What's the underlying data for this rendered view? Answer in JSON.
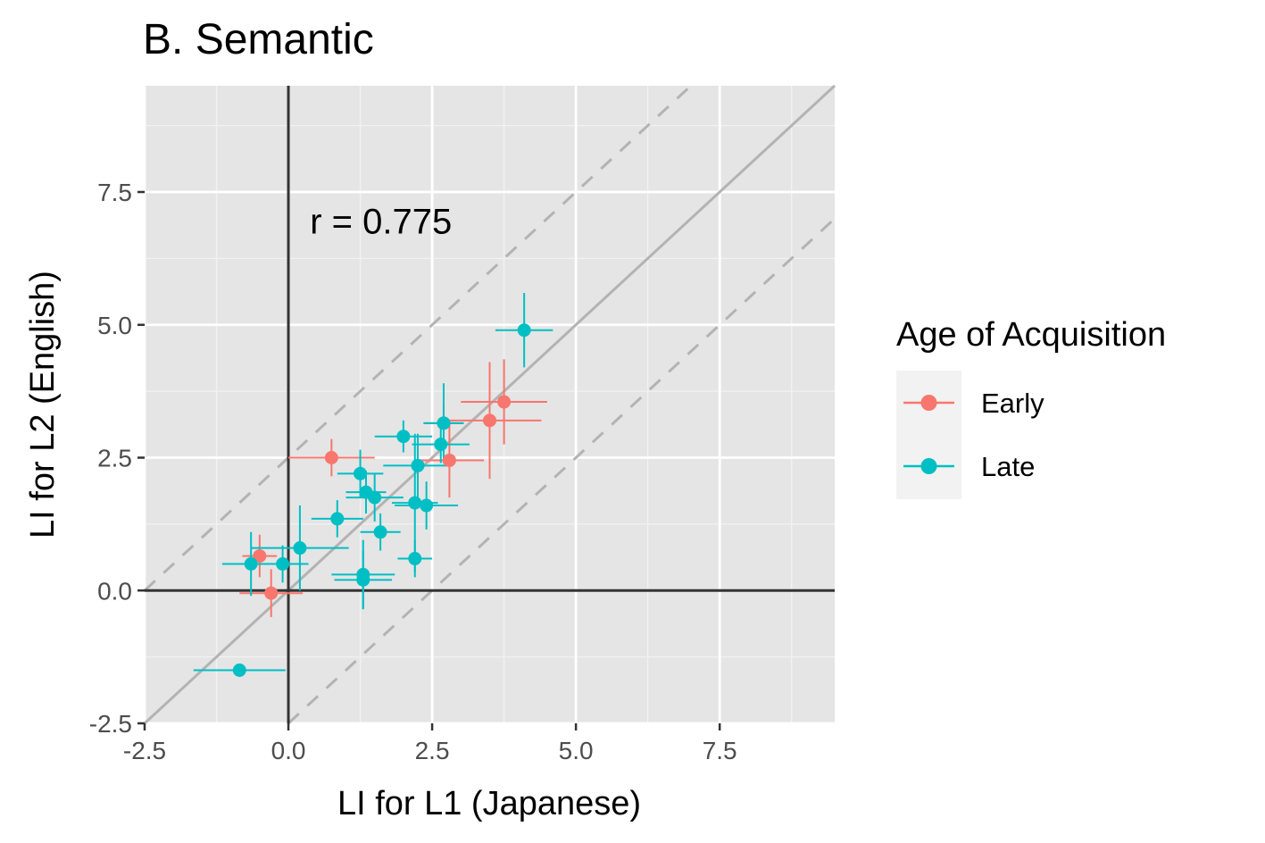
{
  "chart_data": {
    "type": "scatter",
    "title": "B. Semantic",
    "xlabel": "LI for L1 (Japanese)",
    "ylabel": "LI for L2 (English)",
    "xlim": [
      -2.5,
      9.5
    ],
    "ylim": [
      -2.5,
      9.5
    ],
    "x_ticks": [
      -2.5,
      0.0,
      2.5,
      5.0,
      7.5
    ],
    "x_tick_labels": [
      "-2.5",
      "0.0",
      "2.5",
      "5.0",
      "7.5"
    ],
    "y_ticks": [
      -2.5,
      0.0,
      2.5,
      5.0,
      7.5
    ],
    "y_tick_labels": [
      "-2.5",
      "0.0",
      "2.5",
      "5.0",
      "7.5"
    ],
    "grid": true,
    "annotation": {
      "text": "r =  0.775",
      "x": 0.5,
      "y": 6.95
    },
    "reference_lines": [
      {
        "type": "identity",
        "slope": 1,
        "intercept": 0,
        "style": "solid",
        "color": "#b3b3b3"
      },
      {
        "type": "offset",
        "slope": 1,
        "intercept": 2.5,
        "style": "dashed",
        "color": "#b3b3b3"
      },
      {
        "type": "offset",
        "slope": 1,
        "intercept": -2.5,
        "style": "dashed",
        "color": "#b3b3b3"
      }
    ],
    "zero_lines": {
      "x": 0,
      "y": 0,
      "color": "#333333"
    },
    "legend": {
      "title": "Age of Acquisition",
      "position": "right",
      "entries": [
        {
          "label": "Early",
          "color": "#F8766D"
        },
        {
          "label": "Late",
          "color": "#00BFC4"
        }
      ]
    },
    "series": [
      {
        "name": "Early",
        "color": "#F8766D",
        "points": [
          {
            "x": -0.5,
            "y": 0.65,
            "xerr": 0.3,
            "yerr": 0.4
          },
          {
            "x": -0.3,
            "y": -0.05,
            "xerr": 0.55,
            "yerr": 0.45
          },
          {
            "x": 0.75,
            "y": 2.5,
            "xerr": 0.75,
            "yerr": 0.35
          },
          {
            "x": 2.8,
            "y": 2.45,
            "xerr": 0.6,
            "yerr": 0.7
          },
          {
            "x": 3.5,
            "y": 3.2,
            "xerr": 0.9,
            "yerr": 1.1
          },
          {
            "x": 3.75,
            "y": 3.55,
            "xerr": 0.75,
            "yerr": 0.8
          },
          {
            "x": 2.7,
            "y": 3.15,
            "xerr": 0.35,
            "yerr": 0.35
          }
        ]
      },
      {
        "name": "Late",
        "color": "#00BFC4",
        "points": [
          {
            "x": 4.1,
            "y": 4.9,
            "xerr": 0.5,
            "yerr": 0.7
          },
          {
            "x": 2.0,
            "y": 2.9,
            "xerr": 0.5,
            "yerr": 0.3
          },
          {
            "x": 2.65,
            "y": 2.75,
            "xerr": 0.5,
            "yerr": 0.35
          },
          {
            "x": 2.7,
            "y": 3.15,
            "xerr": 0.35,
            "yerr": 0.75
          },
          {
            "x": 2.25,
            "y": 2.35,
            "xerr": 0.6,
            "yerr": 0.6
          },
          {
            "x": 1.25,
            "y": 2.2,
            "xerr": 0.4,
            "yerr": 0.45
          },
          {
            "x": 1.35,
            "y": 1.85,
            "xerr": 0.35,
            "yerr": 0.4
          },
          {
            "x": 1.5,
            "y": 1.75,
            "xerr": 0.5,
            "yerr": 0.45
          },
          {
            "x": 2.2,
            "y": 1.65,
            "xerr": 0.4,
            "yerr": 1.3
          },
          {
            "x": 2.4,
            "y": 1.6,
            "xerr": 0.55,
            "yerr": 0.45
          },
          {
            "x": 0.85,
            "y": 1.35,
            "xerr": 0.45,
            "yerr": 0.35
          },
          {
            "x": 1.6,
            "y": 1.1,
            "xerr": 0.35,
            "yerr": 0.35
          },
          {
            "x": 0.2,
            "y": 0.8,
            "xerr": 0.85,
            "yerr": 0.8
          },
          {
            "x": -0.1,
            "y": 0.5,
            "xerr": 0.45,
            "yerr": 0.35
          },
          {
            "x": -0.65,
            "y": 0.5,
            "xerr": 0.5,
            "yerr": 0.6
          },
          {
            "x": 2.2,
            "y": 0.6,
            "xerr": 0.3,
            "yerr": 0.35
          },
          {
            "x": 1.3,
            "y": 0.3,
            "xerr": 0.55,
            "yerr": 0.65
          },
          {
            "x": 1.3,
            "y": 0.2,
            "xerr": 0.5,
            "yerr": 0.55
          },
          {
            "x": -0.85,
            "y": -1.5,
            "xerr": 0.8,
            "yerr": 0.0
          }
        ]
      }
    ]
  }
}
